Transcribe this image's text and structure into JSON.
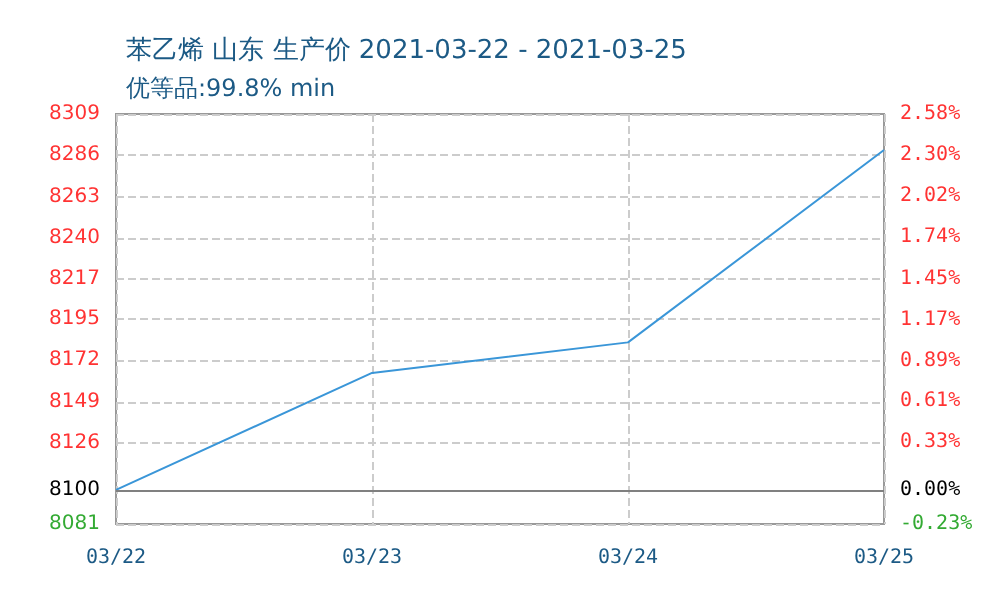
{
  "chart_data": {
    "type": "line",
    "title": "苯乙烯 山东 生产价 2021-03-22 - 2021-03-25",
    "subtitle": "优等品:99.8% min",
    "categories": [
      "03/22",
      "03/23",
      "03/24",
      "03/25"
    ],
    "series": [
      {
        "color": "#3a96d8",
        "values": [
          8100,
          8165,
          8182,
          8289
        ]
      }
    ],
    "ylim": [
      8081,
      8309
    ],
    "yticks": [
      8081,
      8100,
      8126,
      8149,
      8172,
      8195,
      8217,
      8240,
      8263,
      8286,
      8309
    ],
    "y2lim": [
      -0.23,
      2.58
    ],
    "y2ticks": [
      {
        "value": -0.23,
        "label": "-0.23%"
      },
      {
        "value": 0,
        "label": "0.00%"
      },
      {
        "value": 0.33,
        "label": "0.33%"
      },
      {
        "value": 0.61,
        "label": "0.61%"
      },
      {
        "value": 0.89,
        "label": "0.89%"
      },
      {
        "value": 1.17,
        "label": "1.17%"
      },
      {
        "value": 1.45,
        "label": "1.45%"
      },
      {
        "value": 1.74,
        "label": "1.74%"
      },
      {
        "value": 2.02,
        "label": "2.02%"
      },
      {
        "value": 2.3,
        "label": "2.30%"
      },
      {
        "value": 2.58,
        "label": "2.58%"
      }
    ],
    "ref_lines": [
      {
        "axis": "y",
        "value": 8100,
        "color": "#808080",
        "line_style": "solid"
      }
    ],
    "grid": true,
    "marker": "none",
    "line_style": "solid"
  }
}
